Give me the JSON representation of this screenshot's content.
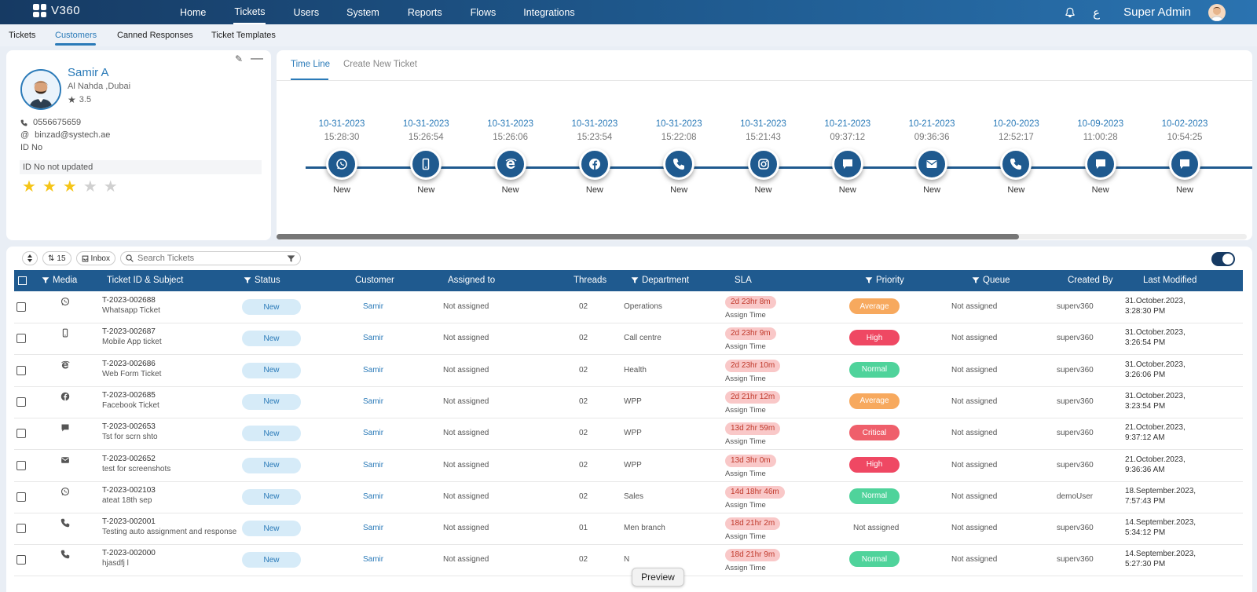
{
  "app": {
    "logo_text": "V360",
    "user": "Super Admin",
    "lang": "ع"
  },
  "nav": [
    "Home",
    "Tickets",
    "Users",
    "System",
    "Reports",
    "Flows",
    "Integrations"
  ],
  "subnav": [
    "Tickets",
    "Customers",
    "Canned Responses",
    "Ticket Templates"
  ],
  "profile": {
    "name": "Samir A",
    "location": "Al Nahda ,Dubai",
    "rating": "3.5",
    "phone": "0556675659",
    "email": "binzad@systech.ae",
    "id_label": "ID No",
    "id_value": "ID No not updated",
    "stars_filled": 3,
    "stars_total": 5
  },
  "timeline": {
    "tabs": [
      "Time Line",
      "Create New Ticket"
    ],
    "events": [
      {
        "date": "10-31-2023",
        "time": "15:28:30",
        "icon": "whatsapp-icon",
        "status": "New"
      },
      {
        "date": "10-31-2023",
        "time": "15:26:54",
        "icon": "mobile-icon",
        "status": "New"
      },
      {
        "date": "10-31-2023",
        "time": "15:26:06",
        "icon": "web-icon",
        "status": "New"
      },
      {
        "date": "10-31-2023",
        "time": "15:23:54",
        "icon": "facebook-icon",
        "status": "New"
      },
      {
        "date": "10-31-2023",
        "time": "15:22:08",
        "icon": "phone-icon",
        "status": "New"
      },
      {
        "date": "10-31-2023",
        "time": "15:21:43",
        "icon": "instagram-icon",
        "status": "New"
      },
      {
        "date": "10-21-2023",
        "time": "09:37:12",
        "icon": "chat-icon",
        "status": "New"
      },
      {
        "date": "10-21-2023",
        "time": "09:36:36",
        "icon": "email-icon",
        "status": "New"
      },
      {
        "date": "10-20-2023",
        "time": "12:52:17",
        "icon": "phone-icon",
        "status": "New"
      },
      {
        "date": "10-09-2023",
        "time": "11:00:28",
        "icon": "chat-icon",
        "status": "New"
      },
      {
        "date": "10-02-2023",
        "time": "10:54:25",
        "icon": "chat-icon",
        "status": "New"
      }
    ]
  },
  "toolbar": {
    "count": "15",
    "inbox": "Inbox",
    "search_placeholder": "Search Tickets"
  },
  "table": {
    "headers": {
      "media": "Media",
      "ticket": "Ticket ID & Subject",
      "status": "Status",
      "customer": "Customer",
      "assigned": "Assigned to",
      "threads": "Threads",
      "department": "Department",
      "sla": "SLA",
      "priority": "Priority",
      "queue": "Queue",
      "created": "Created By",
      "modified": "Last Modified"
    },
    "rows": [
      {
        "media": "whatsapp-icon",
        "id": "T-2023-002688",
        "subject": "Whatsapp Ticket",
        "status": "New",
        "customer": "Samir",
        "assigned": "Not assigned",
        "threads": "02",
        "department": "Operations",
        "sla": "2d 23hr 8m",
        "sla_sub": "Assign Time",
        "priority": "Average",
        "queue": "Not assigned",
        "created": "superv360",
        "modified1": "31.October.2023,",
        "modified2": "3:28:30 PM"
      },
      {
        "media": "mobile-icon",
        "id": "T-2023-002687",
        "subject": "Mobile App ticket",
        "status": "New",
        "customer": "Samir",
        "assigned": "Not assigned",
        "threads": "02",
        "department": "Call centre",
        "sla": "2d 23hr 9m",
        "sla_sub": "Assign Time",
        "priority": "High",
        "queue": "Not assigned",
        "created": "superv360",
        "modified1": "31.October.2023,",
        "modified2": "3:26:54 PM"
      },
      {
        "media": "web-icon",
        "id": "T-2023-002686",
        "subject": "Web Form Ticket",
        "status": "New",
        "customer": "Samir",
        "assigned": "Not assigned",
        "threads": "02",
        "department": "Health",
        "sla": "2d 23hr 10m",
        "sla_sub": "Assign Time",
        "priority": "Normal",
        "queue": "Not assigned",
        "created": "superv360",
        "modified1": "31.October.2023,",
        "modified2": "3:26:06 PM"
      },
      {
        "media": "facebook-icon",
        "id": "T-2023-002685",
        "subject": "Facebook Ticket",
        "status": "New",
        "customer": "Samir",
        "assigned": "Not assigned",
        "threads": "02",
        "department": "WPP",
        "sla": "2d 21hr 12m",
        "sla_sub": "Assign Time",
        "priority": "Average",
        "queue": "Not assigned",
        "created": "superv360",
        "modified1": "31.October.2023,",
        "modified2": "3:23:54 PM"
      },
      {
        "media": "chat-icon",
        "id": "T-2023-002653",
        "subject": "Tst for scrn shto",
        "status": "New",
        "customer": "Samir",
        "assigned": "Not assigned",
        "threads": "02",
        "department": "WPP",
        "sla": "13d 2hr 59m",
        "sla_sub": "Assign Time",
        "priority": "Critical",
        "queue": "Not assigned",
        "created": "superv360",
        "modified1": "21.October.2023,",
        "modified2": "9:37:12 AM"
      },
      {
        "media": "email-icon",
        "id": "T-2023-002652",
        "subject": "test for screenshots",
        "status": "New",
        "customer": "Samir",
        "assigned": "Not assigned",
        "threads": "02",
        "department": "WPP",
        "sla": "13d 3hr 0m",
        "sla_sub": "Assign Time",
        "priority": "High",
        "queue": "Not assigned",
        "created": "superv360",
        "modified1": "21.October.2023,",
        "modified2": "9:36:36 AM"
      },
      {
        "media": "whatsapp-icon",
        "id": "T-2023-002103",
        "subject": "ateat 18th sep",
        "status": "New",
        "customer": "Samir",
        "assigned": "Not assigned",
        "threads": "02",
        "department": "Sales",
        "sla": "14d 18hr 46m",
        "sla_sub": "Assign Time",
        "priority": "Normal",
        "queue": "Not assigned",
        "created": "demoUser",
        "modified1": "18.September.2023,",
        "modified2": "7:57:43 PM"
      },
      {
        "media": "phone-icon",
        "id": "T-2023-002001",
        "subject": "Testing auto assignment and response",
        "status": "New",
        "customer": "Samir",
        "assigned": "Not assigned",
        "threads": "01",
        "department": "Men branch",
        "sla": "18d 21hr 2m",
        "sla_sub": "Assign Time",
        "priority": "Not assigned",
        "queue": "Not assigned",
        "created": "superv360",
        "modified1": "14.September.2023,",
        "modified2": "5:34:12 PM"
      },
      {
        "media": "phone-icon",
        "id": "T-2023-002000",
        "subject": "hjasdfj l",
        "status": "New",
        "customer": "Samir",
        "assigned": "Not assigned",
        "threads": "02",
        "department": "N",
        "sla": "18d 21hr 9m",
        "sla_sub": "Assign Time",
        "priority": "Normal",
        "queue": "Not assigned",
        "created": "superv360",
        "modified1": "14.September.2023,",
        "modified2": "5:27:30 PM"
      }
    ]
  },
  "colors": {
    "primary": "#1f5a8f",
    "accent": "#2a7ab8",
    "average": "#f7a95e",
    "high": "#ef4863",
    "normal": "#4fd39b",
    "critical": "#ef5f6b",
    "star": "#f5c518",
    "star_empty": "#d0d0d0"
  },
  "tooltip": "Preview"
}
